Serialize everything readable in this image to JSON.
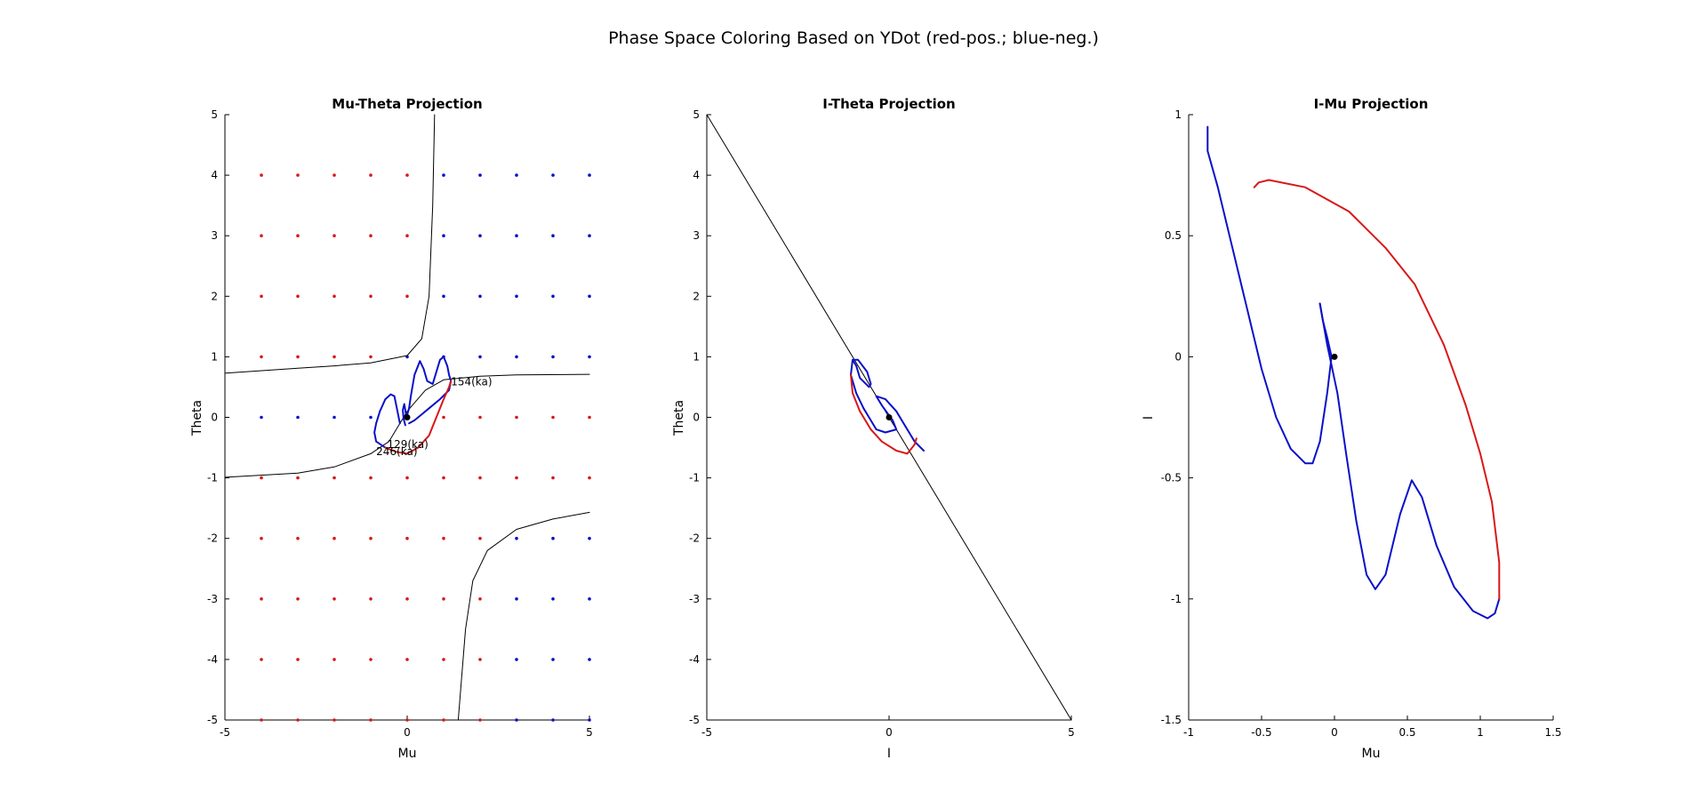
{
  "figure_title": "Phase Space Coloring Based on YDot (red-pos.; blue-neg.)",
  "colors": {
    "positive": "#d81818",
    "negative": "#0a10c8",
    "curve": "#000000",
    "axis": "#000000"
  },
  "chart_data": [
    {
      "type": "scatter",
      "title": "Mu-Theta Projection",
      "xlabel": "Mu",
      "ylabel": "Theta",
      "xlim": [
        -5,
        5
      ],
      "ylim": [
        -5,
        5
      ],
      "xticks": [
        -5,
        0,
        5
      ],
      "yticks": [
        5,
        4,
        3,
        2,
        1,
        0,
        -1,
        -2,
        -3,
        -4,
        -5
      ],
      "grid": false,
      "series": [
        {
          "kind": "dot_grid",
          "x": [
            -4,
            -3,
            -2,
            -1,
            0,
            1,
            2,
            3,
            4,
            5
          ],
          "y": [
            4,
            3,
            2,
            1,
            0,
            -1,
            -2,
            -3,
            -4,
            -5
          ],
          "color_by_row": {
            "4": [
              "pos",
              "pos",
              "pos",
              "pos",
              "pos",
              "neg",
              "neg",
              "neg",
              "neg",
              "neg"
            ],
            "3": [
              "pos",
              "pos",
              "pos",
              "pos",
              "pos",
              "neg",
              "neg",
              "neg",
              "neg",
              "neg"
            ],
            "2": [
              "pos",
              "pos",
              "pos",
              "pos",
              "pos",
              "neg",
              "neg",
              "neg",
              "neg",
              "neg"
            ],
            "1": [
              "pos",
              "pos",
              "pos",
              "pos",
              "neg",
              "neg",
              "neg",
              "neg",
              "neg",
              "neg"
            ],
            "0": [
              "neg",
              "neg",
              "neg",
              "neg",
              "neg",
              "pos",
              "pos",
              "pos",
              "pos",
              "pos"
            ],
            "-1": [
              "pos",
              "pos",
              "pos",
              "pos",
              "pos",
              "pos",
              "pos",
              "pos",
              "pos",
              "pos"
            ],
            "-2": [
              "pos",
              "pos",
              "pos",
              "pos",
              "pos",
              "pos",
              "pos",
              "neg",
              "neg",
              "neg"
            ],
            "-3": [
              "pos",
              "pos",
              "pos",
              "pos",
              "pos",
              "pos",
              "pos",
              "neg",
              "neg",
              "neg"
            ],
            "-4": [
              "pos",
              "pos",
              "pos",
              "pos",
              "pos",
              "pos",
              "pos",
              "neg",
              "neg",
              "neg"
            ],
            "-5": [
              "pos",
              "pos",
              "pos",
              "pos",
              "pos",
              "pos",
              "pos",
              "neg",
              "neg",
              "neg"
            ]
          }
        },
        {
          "kind": "line",
          "color": "curve",
          "points": [
            [
              0.75,
              5
            ],
            [
              0.7,
              3.5
            ],
            [
              0.6,
              2
            ],
            [
              0.4,
              1.3
            ],
            [
              0,
              1.02
            ],
            [
              -1,
              0.9
            ],
            [
              -2,
              0.85
            ],
            [
              -3,
              0.81
            ],
            [
              -5,
              0.73
            ]
          ]
        },
        {
          "kind": "line",
          "color": "curve",
          "points": [
            [
              -5,
              -0.99
            ],
            [
              -3,
              -0.92
            ],
            [
              -2,
              -0.82
            ],
            [
              -1,
              -0.6
            ],
            [
              -0.5,
              -0.4
            ],
            [
              0,
              0.1
            ],
            [
              0.5,
              0.45
            ],
            [
              1,
              0.62
            ],
            [
              2,
              0.68
            ],
            [
              3,
              0.7
            ],
            [
              5,
              0.71
            ]
          ]
        },
        {
          "kind": "line",
          "color": "curve",
          "points": [
            [
              1.4,
              -5
            ],
            [
              1.6,
              -3.5
            ],
            [
              1.8,
              -2.7
            ],
            [
              2.2,
              -2.2
            ],
            [
              3,
              -1.85
            ],
            [
              4,
              -1.68
            ],
            [
              5,
              -1.57
            ]
          ]
        },
        {
          "kind": "line",
          "color": "neg",
          "points": [
            [
              -0.05,
              -0.13
            ],
            [
              -0.1,
              -0.02
            ],
            [
              -0.12,
              0.12
            ],
            [
              -0.08,
              0.22
            ],
            [
              -0.05,
              0.12
            ],
            [
              -0.02,
              0
            ],
            [
              0.05,
              0.15
            ],
            [
              0.1,
              0.35
            ],
            [
              0.2,
              0.7
            ],
            [
              0.35,
              0.93
            ],
            [
              0.45,
              0.8
            ],
            [
              0.55,
              0.6
            ],
            [
              0.7,
              0.55
            ],
            [
              0.8,
              0.75
            ],
            [
              0.9,
              0.95
            ],
            [
              1,
              1.0
            ],
            [
              1.1,
              0.85
            ],
            [
              1.15,
              0.7
            ],
            [
              1.2,
              0.6
            ],
            [
              1.15,
              0.45
            ],
            [
              0.9,
              0.3
            ],
            [
              0.6,
              0.15
            ],
            [
              0.4,
              0.05
            ],
            [
              0.2,
              -0.05
            ],
            [
              0.05,
              -0.1
            ]
          ]
        },
        {
          "kind": "line",
          "color": "neg",
          "points": [
            [
              -0.2,
              -0.1
            ],
            [
              -0.3,
              0.2
            ],
            [
              -0.35,
              0.35
            ],
            [
              -0.45,
              0.38
            ],
            [
              -0.6,
              0.3
            ],
            [
              -0.75,
              0.1
            ],
            [
              -0.85,
              -0.1
            ],
            [
              -0.9,
              -0.25
            ],
            [
              -0.85,
              -0.4
            ],
            [
              -0.6,
              -0.5
            ]
          ]
        },
        {
          "kind": "line",
          "color": "pos",
          "points": [
            [
              -0.6,
              -0.5
            ],
            [
              -0.3,
              -0.57
            ],
            [
              0,
              -0.6
            ],
            [
              0.3,
              -0.5
            ],
            [
              0.6,
              -0.3
            ],
            [
              0.8,
              0
            ],
            [
              1,
              0.3
            ],
            [
              1.15,
              0.5
            ],
            [
              1.2,
              0.6
            ]
          ]
        },
        {
          "kind": "marker",
          "color": "curve",
          "points": [
            [
              0,
              0
            ]
          ]
        }
      ],
      "annotations": [
        {
          "text": "154(ka)",
          "x": 1.2,
          "y": 0.6
        },
        {
          "text": "129(ka)",
          "x": -0.55,
          "y": -0.43
        },
        {
          "text": "246(ka)",
          "x": -0.85,
          "y": -0.55
        }
      ]
    },
    {
      "type": "line",
      "title": "I-Theta Projection",
      "xlabel": "I",
      "ylabel": "Theta",
      "xlim": [
        -5,
        5
      ],
      "ylim": [
        -5,
        5
      ],
      "xticks": [
        -5,
        0,
        5
      ],
      "yticks": [
        5,
        4,
        3,
        2,
        1,
        0,
        -1,
        -2,
        -3,
        -4,
        -5
      ],
      "grid": false,
      "series": [
        {
          "kind": "line",
          "color": "curve",
          "points": [
            [
              -5,
              5
            ],
            [
              5,
              -5
            ]
          ]
        },
        {
          "kind": "line",
          "color": "neg",
          "points": [
            [
              -1,
              0.95
            ],
            [
              -0.85,
              0.95
            ],
            [
              -0.6,
              0.75
            ],
            [
              -0.5,
              0.55
            ],
            [
              -0.55,
              0.5
            ],
            [
              -0.8,
              0.65
            ],
            [
              -0.9,
              0.85
            ],
            [
              -1,
              0.95
            ],
            [
              -1.05,
              0.7
            ],
            [
              -0.9,
              0.4
            ],
            [
              -0.7,
              0.15
            ],
            [
              -0.5,
              -0.05
            ],
            [
              -0.35,
              -0.2
            ],
            [
              -0.1,
              -0.25
            ],
            [
              0.2,
              -0.2
            ],
            [
              0.1,
              -0.05
            ],
            [
              -0.2,
              0.2
            ],
            [
              -0.35,
              0.35
            ],
            [
              -0.1,
              0.3
            ],
            [
              0.2,
              0.1
            ],
            [
              0.5,
              -0.2
            ],
            [
              0.7,
              -0.4
            ],
            [
              0.95,
              -0.55
            ]
          ]
        },
        {
          "kind": "line",
          "color": "pos",
          "points": [
            [
              -1.05,
              0.7
            ],
            [
              -1.0,
              0.4
            ],
            [
              -0.8,
              0.1
            ],
            [
              -0.5,
              -0.2
            ],
            [
              -0.2,
              -0.4
            ],
            [
              0.2,
              -0.55
            ],
            [
              0.5,
              -0.6
            ],
            [
              0.7,
              -0.45
            ],
            [
              0.75,
              -0.35
            ]
          ]
        },
        {
          "kind": "marker",
          "color": "curve",
          "points": [
            [
              0,
              0
            ]
          ]
        }
      ],
      "annotations": []
    },
    {
      "type": "line",
      "title": "I-Mu Projection",
      "xlabel": "Mu",
      "ylabel": "I",
      "xlim": [
        -1,
        1.5
      ],
      "ylim": [
        -1.5,
        1
      ],
      "xticks": [
        -1,
        -0.5,
        0,
        0.5,
        1,
        1.5
      ],
      "yticks": [
        1,
        0.5,
        0,
        -0.5,
        -1,
        -1.5
      ],
      "grid": false,
      "series": [
        {
          "kind": "line",
          "color": "neg",
          "points": [
            [
              -0.87,
              0.95
            ],
            [
              -0.87,
              0.85
            ],
            [
              -0.8,
              0.7
            ],
            [
              -0.7,
              0.45
            ],
            [
              -0.6,
              0.2
            ],
            [
              -0.5,
              -0.05
            ],
            [
              -0.4,
              -0.25
            ],
            [
              -0.3,
              -0.38
            ],
            [
              -0.2,
              -0.44
            ],
            [
              -0.15,
              -0.44
            ],
            [
              -0.1,
              -0.35
            ],
            [
              -0.05,
              -0.15
            ],
            [
              -0.02,
              0
            ],
            [
              -0.05,
              0.08
            ],
            [
              -0.08,
              0.15
            ],
            [
              -0.1,
              0.22
            ]
          ]
        },
        {
          "kind": "line",
          "color": "neg",
          "points": [
            [
              -0.1,
              0.22
            ],
            [
              -0.05,
              0.05
            ],
            [
              0.02,
              -0.15
            ],
            [
              0.08,
              -0.4
            ],
            [
              0.15,
              -0.68
            ],
            [
              0.22,
              -0.9
            ],
            [
              0.28,
              -0.96
            ],
            [
              0.35,
              -0.9
            ],
            [
              0.45,
              -0.65
            ],
            [
              0.53,
              -0.51
            ],
            [
              0.6,
              -0.58
            ],
            [
              0.7,
              -0.78
            ],
            [
              0.82,
              -0.95
            ],
            [
              0.95,
              -1.05
            ],
            [
              1.05,
              -1.08
            ],
            [
              1.1,
              -1.06
            ],
            [
              1.13,
              -1.0
            ]
          ]
        },
        {
          "kind": "line",
          "color": "pos",
          "points": [
            [
              1.13,
              -1.0
            ],
            [
              1.13,
              -0.85
            ],
            [
              1.08,
              -0.6
            ],
            [
              1.0,
              -0.4
            ],
            [
              0.9,
              -0.2
            ],
            [
              0.75,
              0.05
            ],
            [
              0.55,
              0.3
            ],
            [
              0.35,
              0.45
            ],
            [
              0.1,
              0.6
            ],
            [
              -0.2,
              0.7
            ],
            [
              -0.45,
              0.73
            ],
            [
              -0.52,
              0.72
            ],
            [
              -0.55,
              0.7
            ]
          ]
        },
        {
          "kind": "marker",
          "color": "curve",
          "points": [
            [
              0,
              0
            ]
          ]
        }
      ],
      "annotations": []
    }
  ]
}
